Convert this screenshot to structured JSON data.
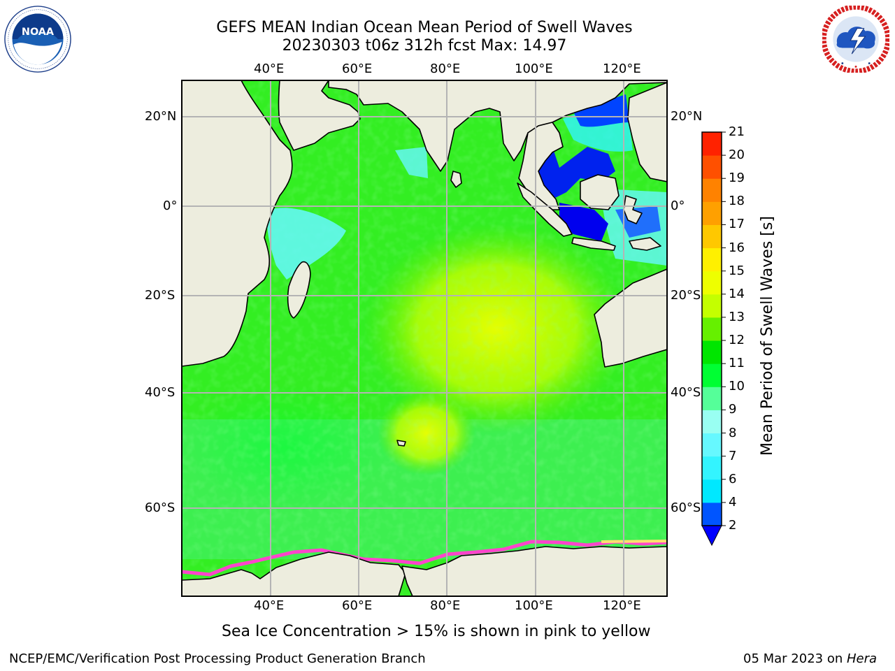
{
  "title": {
    "line1": "GEFS MEAN Indian Ocean Mean Period of Swell Waves",
    "line2": "20230303 t06z 312h fcst   Max: 14.97"
  },
  "logos": {
    "noaa": {
      "name": "noaa-logo",
      "text": "NOAA",
      "ring_text": "NATIONAL OCEANIC AND ATMOSPHERIC ADMINISTRATION · U.S. DEPARTMENT OF COMMERCE"
    },
    "nws": {
      "name": "nws-logo",
      "ring_text": "NATIONAL WEATHER SERVICE"
    }
  },
  "map": {
    "longitude_labels": [
      "40°E",
      "60°E",
      "80°E",
      "100°E",
      "120°E"
    ],
    "latitude_labels": [
      "20°N",
      "0°",
      "20°S",
      "40°S",
      "60°S"
    ],
    "ice_note": "Sea Ice Concentration > 15% is shown in pink to yellow"
  },
  "colorbar": {
    "label": "Mean Period of Swell Waves [s]",
    "tick_labels": [
      "2",
      "4",
      "6",
      "7",
      "8",
      "9",
      "10",
      "11",
      "12",
      "13",
      "14",
      "15",
      "16",
      "17",
      "18",
      "19",
      "20",
      "21"
    ],
    "colors": [
      "#0055ff",
      "#00e8ff",
      "#33f4ff",
      "#66f8ff",
      "#99fff2",
      "#55ff99",
      "#00ff33",
      "#00e600",
      "#66f000",
      "#c4ff00",
      "#eeff00",
      "#fff000",
      "#ffc800",
      "#ffa000",
      "#ff8200",
      "#ff5000",
      "#ff2200"
    ],
    "under_color": "#0000ff",
    "extend": "min"
  },
  "chart_data": {
    "type": "heatmap",
    "title": "GEFS MEAN Indian Ocean Mean Period of Swell Waves",
    "subtitle": "20230303 t06z 312h fcst   Max: 14.97",
    "variable": "Mean Period of Swell Waves [s]",
    "max_value": 14.97,
    "xlim": [
      20,
      130
    ],
    "ylim": [
      -75,
      28
    ],
    "x_ticks": [
      40,
      60,
      80,
      100,
      120
    ],
    "y_ticks": [
      20,
      0,
      -20,
      -40,
      -60
    ],
    "grid": true
  },
  "footer": {
    "left": "NCEP/EMC/Verification Post Processing Product Generation Branch",
    "right_prefix": "05 Mar 2023 on ",
    "right_machine": "Hera"
  }
}
